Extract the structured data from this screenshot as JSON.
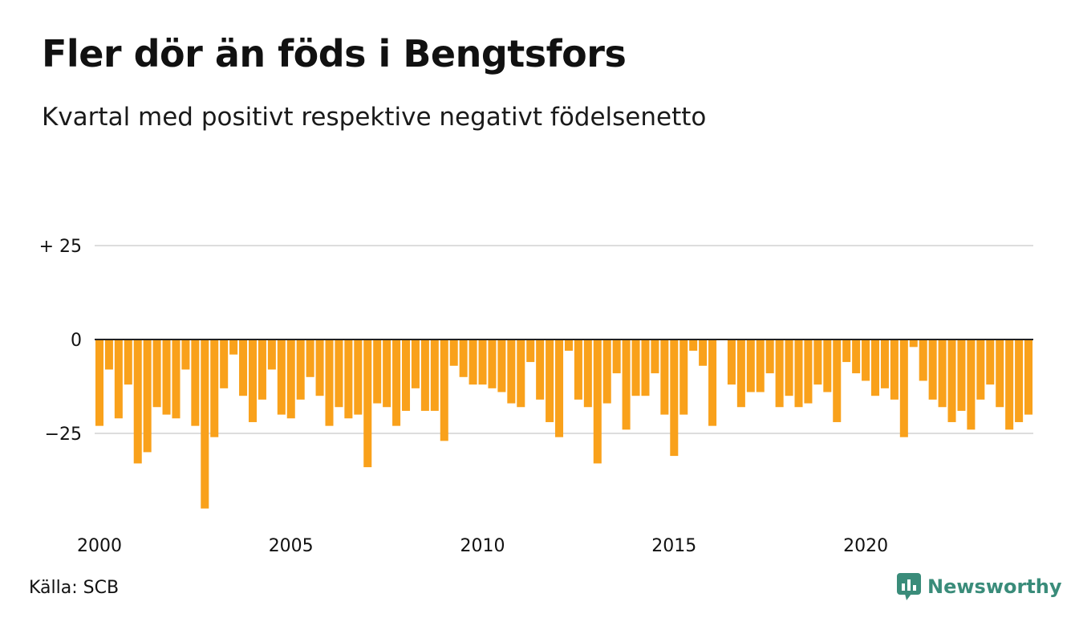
{
  "header": {
    "title": "Fler dör än föds i Bengtsfors",
    "subtitle": "Kvartal med positivt respektive negativt födelsenetto"
  },
  "footer": {
    "source": "Källa: SCB",
    "brand": "Newsworthy",
    "brand_icon": "bar-chart-speech-bubble-icon",
    "brand_color": "#3a8c7a"
  },
  "colors": {
    "bar": "#f9a11b",
    "grid": "#dddddd",
    "zero_line": "#222222"
  },
  "chart_data": {
    "type": "bar",
    "x_start": "2000 Q1",
    "x_ticks": [
      "2000",
      "2005",
      "2010",
      "2015",
      "2020"
    ],
    "y_ticks": [
      "+ 25",
      "0",
      "−25"
    ],
    "y_tick_values": [
      25,
      0,
      -25
    ],
    "ylim": [
      -46,
      27
    ],
    "grid": true,
    "values": [
      -23,
      -8,
      -21,
      -12,
      -33,
      -30,
      -18,
      -20,
      -21,
      -8,
      -23,
      -45,
      -26,
      -13,
      -4,
      -15,
      -22,
      -16,
      -8,
      -20,
      -21,
      -16,
      -10,
      -15,
      -23,
      -18,
      -21,
      -20,
      -34,
      -17,
      -18,
      -23,
      -19,
      -13,
      -19,
      -19,
      -27,
      -7,
      -10,
      -12,
      -12,
      -13,
      -14,
      -17,
      -18,
      -6,
      -16,
      -22,
      -26,
      -3,
      -16,
      -18,
      -33,
      -17,
      -9,
      -24,
      -15,
      -15,
      -9,
      -20,
      -31,
      -20,
      -3,
      -7,
      -23,
      0,
      -12,
      -18,
      -14,
      -14,
      -9,
      -18,
      -15,
      -18,
      -17,
      -12,
      -14,
      -22,
      -6,
      -9,
      -11,
      -15,
      -13,
      -16,
      -26,
      -2,
      -11,
      -16,
      -18,
      -22,
      -19,
      -24,
      -16,
      -12,
      -18,
      -24,
      -22,
      -20
    ]
  }
}
